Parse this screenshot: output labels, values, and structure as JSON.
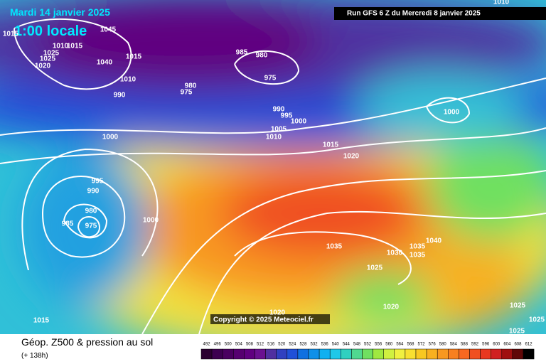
{
  "header": {
    "date": "Mardi 14 janvier 2025",
    "time": "1:00 locale",
    "run": "Run GFS 6 Z du Mercredi 8 janvier 2025"
  },
  "copyright": "Copyright © 2025 Meteociel.fr",
  "footer": {
    "title": "Géop. Z500 & pression au sol",
    "lead": "(+ 138h)"
  },
  "isobar_labels": [
    "1015",
    "1045",
    "1010",
    "1015",
    "1025",
    "1025",
    "1020",
    "1040",
    "1015",
    "1010",
    "990",
    "985",
    "980",
    "975",
    "980",
    "975",
    "990",
    "995",
    "1000",
    "1005",
    "1010",
    "1015",
    "1020",
    "1000",
    "1010",
    "1000",
    "995",
    "990",
    "980",
    "985",
    "975",
    "1000",
    "1035",
    "1030",
    "1035",
    "1035",
    "1040",
    "1025",
    "1020",
    "1020",
    "1015",
    "1025",
    "1025",
    "1025"
  ],
  "scale": {
    "levels": [
      {
        "value": 492,
        "color": "#2b0030"
      },
      {
        "value": 496,
        "color": "#3d0050"
      },
      {
        "value": 500,
        "color": "#4a0060"
      },
      {
        "value": 504,
        "color": "#560070"
      },
      {
        "value": 508,
        "color": "#600080"
      },
      {
        "value": 512,
        "color": "#6a1090"
      },
      {
        "value": 516,
        "color": "#5030a0"
      },
      {
        "value": 520,
        "color": "#3040c0"
      },
      {
        "value": 524,
        "color": "#2050d8"
      },
      {
        "value": 528,
        "color": "#1070e0"
      },
      {
        "value": 532,
        "color": "#1090e8"
      },
      {
        "value": 536,
        "color": "#10b0f0"
      },
      {
        "value": 540,
        "color": "#20c8e8"
      },
      {
        "value": 544,
        "color": "#30d0c0"
      },
      {
        "value": 548,
        "color": "#50d890"
      },
      {
        "value": 552,
        "color": "#70e060"
      },
      {
        "value": 556,
        "color": "#a0e840"
      },
      {
        "value": 560,
        "color": "#d0f040"
      },
      {
        "value": 564,
        "color": "#f0f040"
      },
      {
        "value": 568,
        "color": "#f8e030"
      },
      {
        "value": 572,
        "color": "#f8c820"
      },
      {
        "value": 576,
        "color": "#f8b020"
      },
      {
        "value": 580,
        "color": "#f89820"
      },
      {
        "value": 584,
        "color": "#f88020"
      },
      {
        "value": 588,
        "color": "#f86820"
      },
      {
        "value": 592,
        "color": "#f05020"
      },
      {
        "value": 596,
        "color": "#e83820"
      },
      {
        "value": 600,
        "color": "#d02020"
      },
      {
        "value": 604,
        "color": "#a01010"
      },
      {
        "value": 608,
        "color": "#600808"
      },
      {
        "value": 612,
        "color": "#000000"
      }
    ]
  }
}
